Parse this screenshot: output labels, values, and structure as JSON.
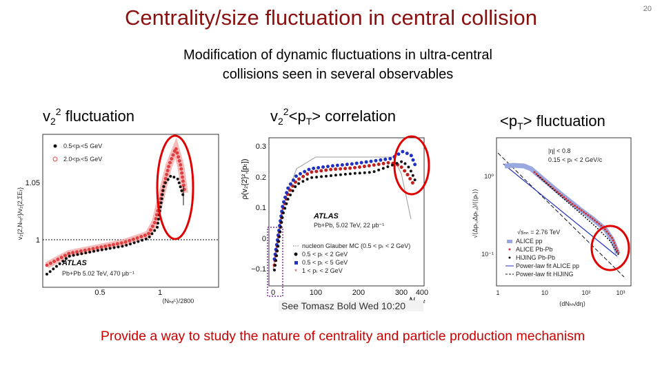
{
  "slide_number": "20",
  "title": "Centrality/size fluctuation in central collision",
  "subtitle_lines": [
    "Modification of dynamic fluctuations in ultra-central",
    "collisions seen in several observables"
  ],
  "headings": [
    [
      "v",
      "2",
      "2",
      " fluctuation"
    ],
    [
      "v",
      "2",
      "2",
      "<p",
      "T",
      "> correlation"
    ],
    [
      "<p",
      "T",
      "> fluctuation"
    ]
  ],
  "plot1": {
    "legend": [
      "0.5<pₜ<5 GeV",
      "2.0<pₜ<5 GeV"
    ],
    "experiment": "ATLAS",
    "dataset": "Pb+Pb 5.02 TeV, 470 μb⁻¹",
    "yticks": [
      "1.05",
      "1"
    ],
    "xticks": [
      "0.5",
      "1"
    ],
    "xlabel": "⟨Nₕₑᶜ⟩/2800",
    "ylabel": "v₂{2,Nₕₑᶜ}/v₂{2,ΣEₜ}"
  },
  "plot2": {
    "yticks": [
      "0.3",
      "0.2",
      "0.1",
      "0",
      "−0.1"
    ],
    "xticks": [
      "0",
      "100",
      "200",
      "300",
      "400"
    ],
    "xlabel": "Nₚₐᵣₜ",
    "ylabel": "ρ(v₂{2}²,[pₜ])",
    "experiment": "ATLAS",
    "dataset": "Pb+Pb, 5.02 TeV, 22 μb⁻¹",
    "legend": [
      "nucleon Glauber MC (0.5 < pₜ < 2 GeV)",
      "0.5 < pₜ < 2 GeV",
      "0.5 < pₜ < 5 GeV",
      "1 < pₜ < 2 GeV"
    ],
    "note": "See Tomasz Bold Wed 10:20"
  },
  "plot3": {
    "cuts": [
      "|η| < 0.8",
      "0.15 < pₜ < 2 GeV/c"
    ],
    "energy": "√sₙₙ = 2.76 TeV",
    "legend": [
      "ALICE pp",
      "ALICE Pb-Pb",
      "HIJING Pb-Pb",
      "Power-law fit ALICE pp",
      "Power-law fit HIJING"
    ],
    "yticks": [
      "10⁰",
      "10⁻¹"
    ],
    "xticks": [
      "1",
      "10",
      "10²",
      "10³"
    ],
    "xlabel": "⟨dNₕₕ/dη⟩",
    "ylabel": "√⟨Δpₜ,ᵢΔpₜ,ⱼ⟩/⟨⟨pₜ⟩⟩"
  },
  "footer": "Provide a way to study the nature of centrality and particle production mechanism"
}
